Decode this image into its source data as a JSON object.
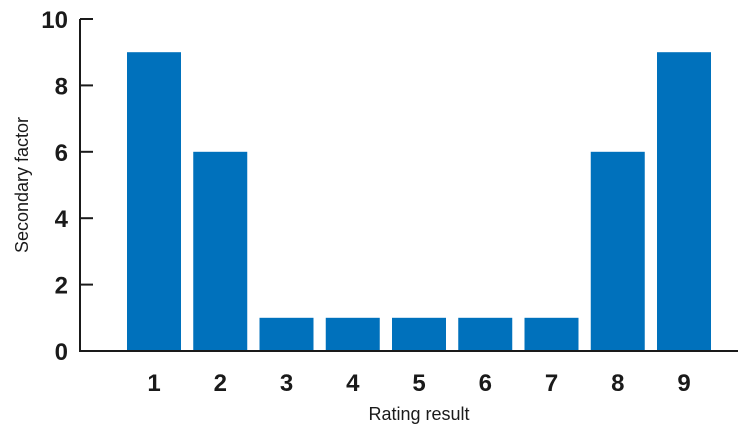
{
  "chart_data": {
    "type": "bar",
    "title": "",
    "xlabel": "Rating result",
    "ylabel": "Secondary factor",
    "categories": [
      "1",
      "2",
      "3",
      "4",
      "5",
      "6",
      "7",
      "8",
      "9"
    ],
    "values": [
      9,
      6,
      1,
      1,
      1,
      1,
      1,
      6,
      9
    ],
    "ylim": [
      0,
      10
    ],
    "yticks": [
      0,
      2,
      4,
      6,
      8,
      10
    ],
    "grid": false,
    "legend": "none",
    "bar_color": "#0071bc",
    "axis_color": "#1a1a1a"
  }
}
